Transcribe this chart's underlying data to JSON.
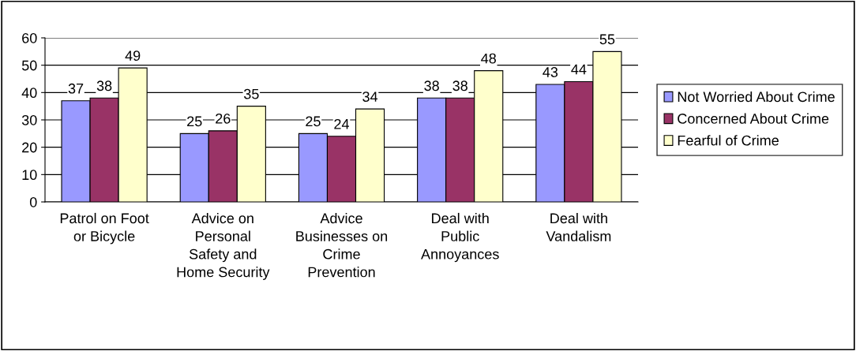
{
  "chart_data": {
    "type": "bar",
    "categories": [
      "Patrol on Foot\nor Bicycle",
      "Advice on\nPersonal\nSafety and\nHome Security",
      "Advice\nBusinesses on\nCrime\nPrevention",
      "Deal with\nPublic\nAnnoyances",
      "Deal with\nVandalism"
    ],
    "series": [
      {
        "name": "Not Worried About Crime",
        "color": "#9999ff",
        "values": [
          37,
          25,
          25,
          38,
          43
        ]
      },
      {
        "name": "Concerned About Crime",
        "color": "#993366",
        "values": [
          38,
          26,
          24,
          38,
          44
        ]
      },
      {
        "name": "Fearful of Crime",
        "color": "#ffffcc",
        "values": [
          49,
          35,
          34,
          48,
          55
        ]
      }
    ],
    "ylim": [
      0,
      60
    ],
    "yticks": [
      0,
      10,
      20,
      30,
      40,
      50,
      60
    ],
    "grid": "y",
    "legend": "right",
    "data_labels": true
  }
}
